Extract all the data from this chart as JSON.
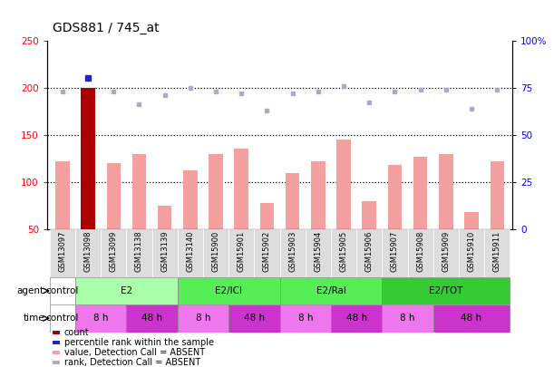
{
  "title": "GDS881 / 745_at",
  "samples": [
    "GSM13097",
    "GSM13098",
    "GSM13099",
    "GSM13138",
    "GSM13139",
    "GSM13140",
    "GSM15900",
    "GSM15901",
    "GSM15902",
    "GSM15903",
    "GSM15904",
    "GSM15905",
    "GSM15906",
    "GSM15907",
    "GSM15908",
    "GSM15909",
    "GSM15910",
    "GSM15911"
  ],
  "bar_values": [
    122,
    200,
    120,
    130,
    75,
    112,
    130,
    135,
    78,
    110,
    122,
    145,
    80,
    118,
    127,
    130,
    68,
    122
  ],
  "bar_highlight": [
    false,
    true,
    false,
    false,
    false,
    false,
    false,
    false,
    false,
    false,
    false,
    false,
    false,
    false,
    false,
    false,
    false,
    false
  ],
  "rank_values": [
    73,
    80,
    73,
    66,
    71,
    75,
    73,
    72,
    63,
    72,
    73,
    76,
    67,
    73,
    74,
    74,
    64,
    74
  ],
  "rank_absent": [
    true,
    false,
    true,
    true,
    true,
    true,
    true,
    true,
    true,
    true,
    true,
    true,
    true,
    true,
    true,
    true,
    true,
    true
  ],
  "bar_color_normal": "#f5a0a0",
  "bar_color_highlight": "#aa0000",
  "rank_color_present": "#2222cc",
  "rank_color_absent": "#aaaacc",
  "ylim_left": [
    50,
    250
  ],
  "ylim_right": [
    0,
    100
  ],
  "yticks_left": [
    50,
    100,
    150,
    200,
    250
  ],
  "yticks_right": [
    0,
    25,
    50,
    75,
    100
  ],
  "ytick_labels_right": [
    "0",
    "25",
    "50",
    "75",
    "100%"
  ],
  "hlines": [
    100,
    150,
    200
  ],
  "agent_groups": [
    {
      "label": "control",
      "start": 0,
      "end": 1,
      "color": "#ffffff"
    },
    {
      "label": "E2",
      "start": 1,
      "end": 5,
      "color": "#aaffaa"
    },
    {
      "label": "E2/ICI",
      "start": 5,
      "end": 9,
      "color": "#55ee55"
    },
    {
      "label": "E2/Ral",
      "start": 9,
      "end": 13,
      "color": "#55ee55"
    },
    {
      "label": "E2/TOT",
      "start": 13,
      "end": 18,
      "color": "#33cc33"
    }
  ],
  "time_groups": [
    {
      "label": "control",
      "start": 0,
      "end": 1,
      "color": "#ffffff"
    },
    {
      "label": "8 h",
      "start": 1,
      "end": 3,
      "color": "#ee77ee"
    },
    {
      "label": "48 h",
      "start": 3,
      "end": 5,
      "color": "#cc33cc"
    },
    {
      "label": "8 h",
      "start": 5,
      "end": 7,
      "color": "#ee77ee"
    },
    {
      "label": "48 h",
      "start": 7,
      "end": 9,
      "color": "#cc33cc"
    },
    {
      "label": "8 h",
      "start": 9,
      "end": 11,
      "color": "#ee77ee"
    },
    {
      "label": "48 h",
      "start": 11,
      "end": 13,
      "color": "#cc33cc"
    },
    {
      "label": "8 h",
      "start": 13,
      "end": 15,
      "color": "#ee77ee"
    },
    {
      "label": "48 h",
      "start": 15,
      "end": 18,
      "color": "#cc33cc"
    }
  ],
  "legend_items": [
    {
      "label": "count",
      "color": "#aa0000"
    },
    {
      "label": "percentile rank within the sample",
      "color": "#2222cc"
    },
    {
      "label": "value, Detection Call = ABSENT",
      "color": "#f5a0a0"
    },
    {
      "label": "rank, Detection Call = ABSENT",
      "color": "#aaaacc"
    }
  ]
}
